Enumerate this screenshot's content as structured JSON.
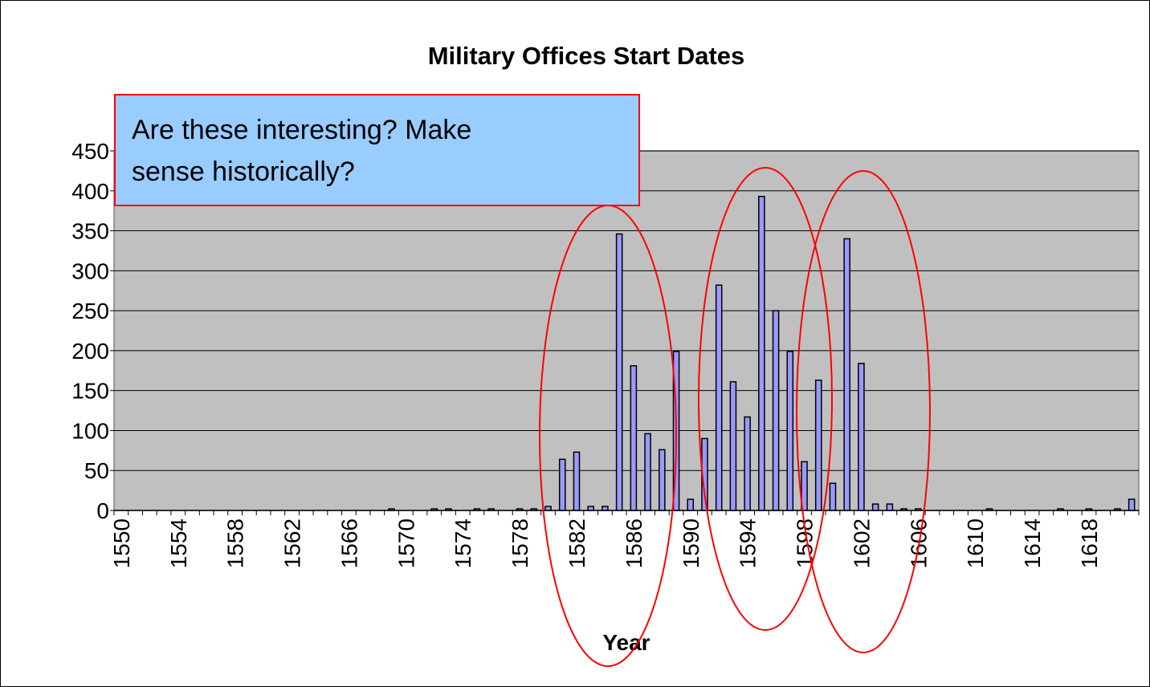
{
  "chart_data": {
    "type": "bar",
    "title": "Military Offices Start Dates",
    "xlabel": "Year",
    "annotation": [
      "Are these interesting? Make",
      "sense historically?"
    ],
    "categories": [
      "1550",
      null,
      null,
      null,
      "1554",
      null,
      null,
      null,
      "1558",
      null,
      null,
      null,
      "1562",
      null,
      null,
      null,
      "1566",
      null,
      null,
      null,
      "1570",
      null,
      null,
      null,
      "1574",
      null,
      null,
      null,
      "1578",
      null,
      null,
      null,
      "1582",
      null,
      null,
      null,
      "1586",
      null,
      null,
      null,
      "1590",
      null,
      null,
      null,
      "1594",
      null,
      null,
      null,
      "1598",
      null,
      null,
      null,
      "1602",
      null,
      null,
      null,
      "1606",
      null,
      null,
      null,
      "1610",
      null,
      null,
      null,
      "1614",
      null,
      null,
      null,
      "1618",
      null,
      null,
      null
    ],
    "values": [
      0,
      0,
      0,
      0,
      0,
      0,
      0,
      0,
      0,
      0,
      0,
      0,
      0,
      0,
      0,
      0,
      0,
      0,
      0,
      2,
      0,
      0,
      2,
      2,
      0,
      2,
      2,
      0,
      2,
      2,
      5,
      64,
      73,
      5,
      5,
      346,
      181,
      96,
      76,
      199,
      14,
      90,
      282,
      161,
      117,
      393,
      250,
      199,
      61,
      163,
      34,
      340,
      184,
      8,
      8,
      2,
      2,
      0,
      0,
      0,
      0,
      2,
      0,
      0,
      0,
      0,
      2,
      0,
      2,
      0,
      2,
      14
    ],
    "color": "#9999ff",
    "ylim": [
      0,
      450
    ],
    "yticks": [
      0,
      50,
      100,
      150,
      200,
      250,
      300,
      350,
      400,
      450
    ],
    "grid": true
  }
}
